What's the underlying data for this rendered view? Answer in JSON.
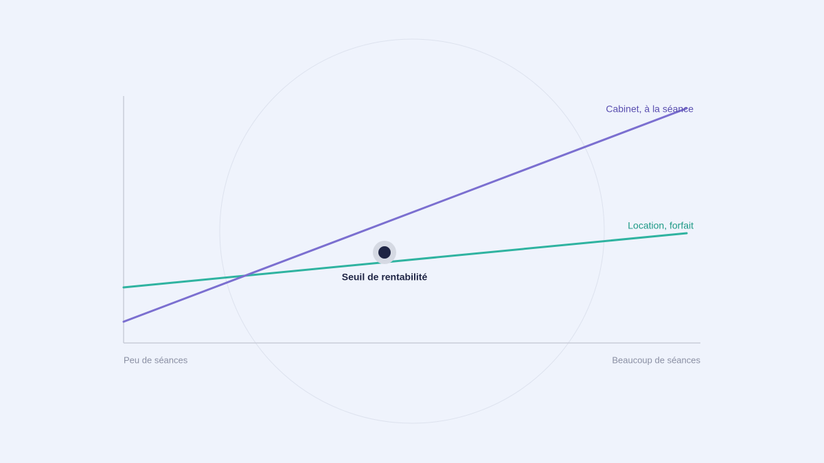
{
  "lines": [
    {
      "label": "Cabinet, à la séance"
    },
    {
      "label": "Location, forfait"
    }
  ],
  "point": {
    "label": "Seuil de rentabilité"
  },
  "axis": {
    "start_label": "Peu de séances",
    "end_label": "Beaucoup de séances"
  }
}
